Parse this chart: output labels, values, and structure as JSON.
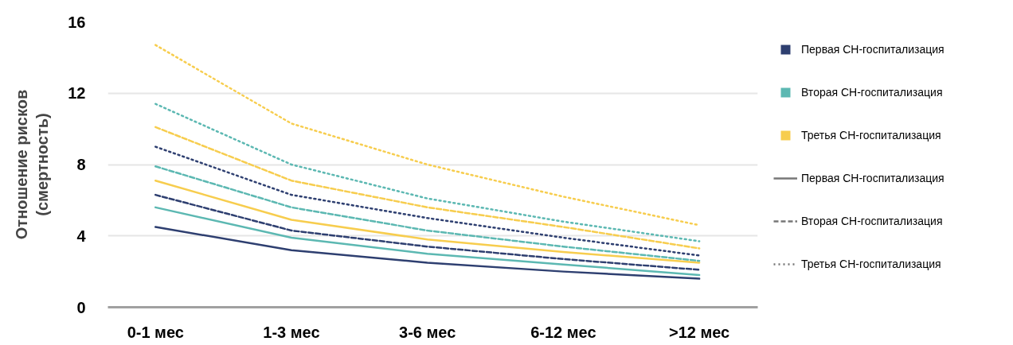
{
  "chart_data": {
    "type": "line",
    "ylabel": "Отношение рисков\n(смертность)",
    "categories": [
      "0-1 мес",
      "1-3 мес",
      "3-6 мес",
      "6-12 мес",
      ">12 мес"
    ],
    "ylim": [
      0,
      16
    ],
    "yticks": [
      0,
      4,
      8,
      12,
      16
    ],
    "grid": "y",
    "legend": "right",
    "series": [
      {
        "name": "Первая СН-госпитализация",
        "color": "#2e3f70",
        "line_style": "solid",
        "values": [
          4.5,
          3.2,
          2.5,
          2.0,
          1.6
        ]
      },
      {
        "name": "Вторая СН-госпитализация",
        "color": "#5cb8b2",
        "line_style": "solid",
        "values": [
          5.6,
          3.9,
          3.0,
          2.4,
          1.8
        ]
      },
      {
        "name": "Третья СН-госпитализация",
        "color": "#f7cd4e",
        "line_style": "solid",
        "values": [
          7.1,
          4.9,
          3.8,
          3.1,
          2.5
        ]
      },
      {
        "color": "#2e3f70",
        "line_style": "dashed",
        "values": [
          6.3,
          4.3,
          3.4,
          2.7,
          2.1
        ]
      },
      {
        "color": "#5cb8b2",
        "line_style": "dashed",
        "values": [
          7.9,
          5.6,
          4.3,
          3.4,
          2.6
        ]
      },
      {
        "color": "#f7cd4e",
        "line_style": "dashed",
        "values": [
          10.1,
          7.1,
          5.6,
          4.5,
          3.3
        ]
      },
      {
        "color": "#2e3f70",
        "line_style": "dotted",
        "values": [
          9.0,
          6.3,
          5.0,
          3.9,
          2.9
        ]
      },
      {
        "color": "#5cb8b2",
        "line_style": "dotted",
        "values": [
          11.4,
          8.0,
          6.1,
          4.8,
          3.7
        ]
      },
      {
        "color": "#f7cd4e",
        "line_style": "dotted",
        "values": [
          14.7,
          10.3,
          8.0,
          6.2,
          4.6
        ]
      }
    ],
    "annotations": [
      "Первая СН-госпитализация",
      "Вторая СН-госпитализация",
      "Третья СН-госпитализация"
    ]
  }
}
